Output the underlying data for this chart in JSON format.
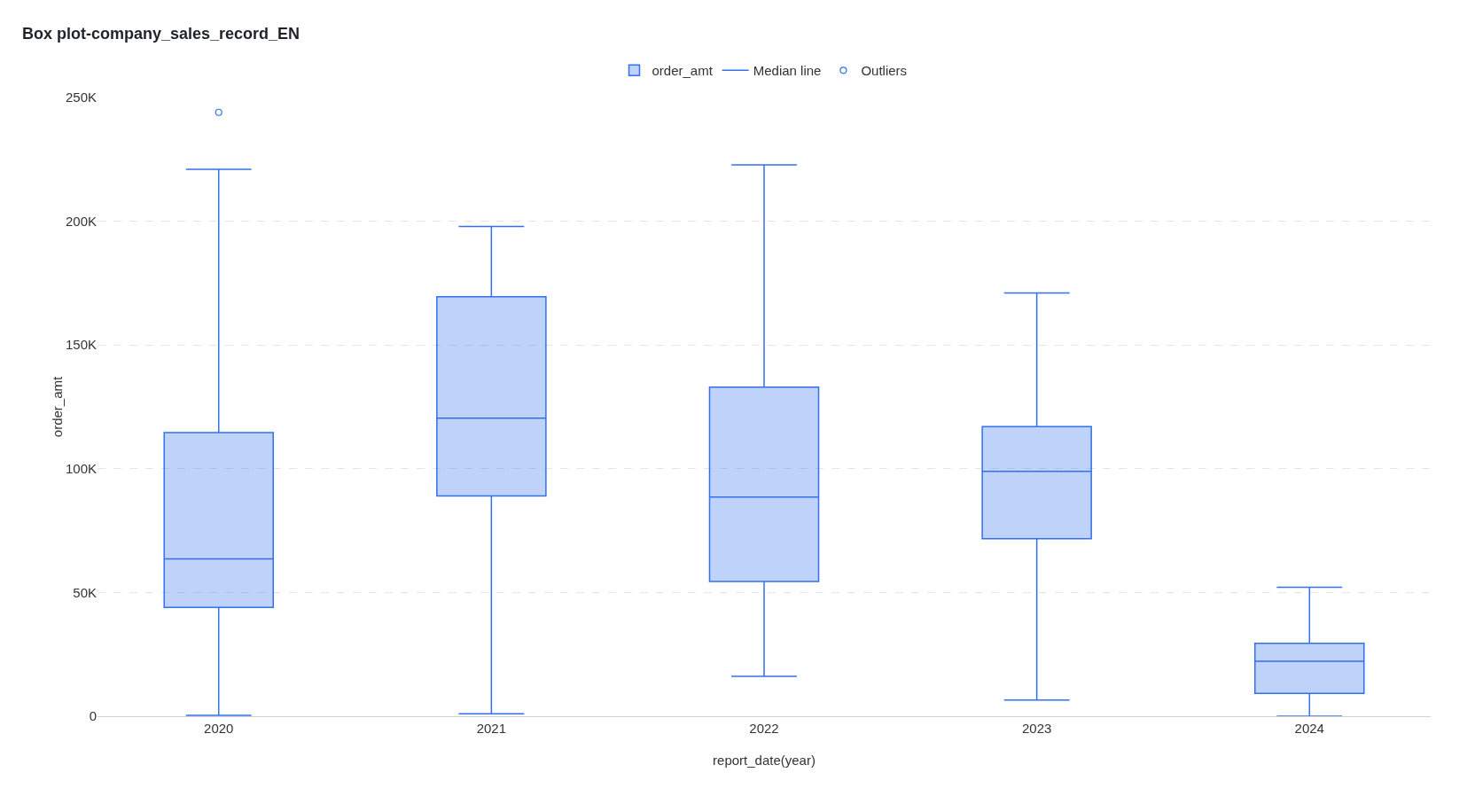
{
  "chart_data": {
    "type": "box",
    "title": "Box plot-company_sales_record_EN",
    "xlabel": "report_date(year)",
    "ylabel": "order_amt",
    "categories": [
      "2020",
      "2021",
      "2022",
      "2023",
      "2024"
    ],
    "series": [
      {
        "name": "order_amt",
        "type": "box",
        "color": "#3370eb",
        "boxes": [
          {
            "low": 400,
            "q1": 44000,
            "median": 63600,
            "q3": 114600,
            "high": 221000
          },
          {
            "low": 1000,
            "q1": 89000,
            "median": 120400,
            "q3": 169500,
            "high": 197900
          },
          {
            "low": 16100,
            "q1": 54400,
            "median": 88600,
            "q3": 133000,
            "high": 222800
          },
          {
            "low": 6500,
            "q1": 71700,
            "median": 98900,
            "q3": 117000,
            "high": 171000
          },
          {
            "low": 0,
            "q1": 9200,
            "median": 22200,
            "q3": 29500,
            "high": 52100
          }
        ]
      },
      {
        "name": "Median line",
        "type": "line",
        "color": "#3370eb",
        "values": [
          null,
          null,
          null,
          null,
          null
        ]
      },
      {
        "name": "Outliers",
        "type": "scatter",
        "color": "#3370eb",
        "values": [
          244000,
          null,
          null,
          null,
          null
        ]
      }
    ],
    "ylim": [
      0,
      250000
    ],
    "yticks": [
      {
        "value": 0,
        "label": "0"
      },
      {
        "value": 50000,
        "label": "50K"
      },
      {
        "value": 100000,
        "label": "100K"
      },
      {
        "value": 150000,
        "label": "150K"
      },
      {
        "value": 200000,
        "label": "200K"
      },
      {
        "value": 250000,
        "label": "250K"
      }
    ],
    "grid": "y",
    "legend": "top",
    "marker": "circle"
  }
}
